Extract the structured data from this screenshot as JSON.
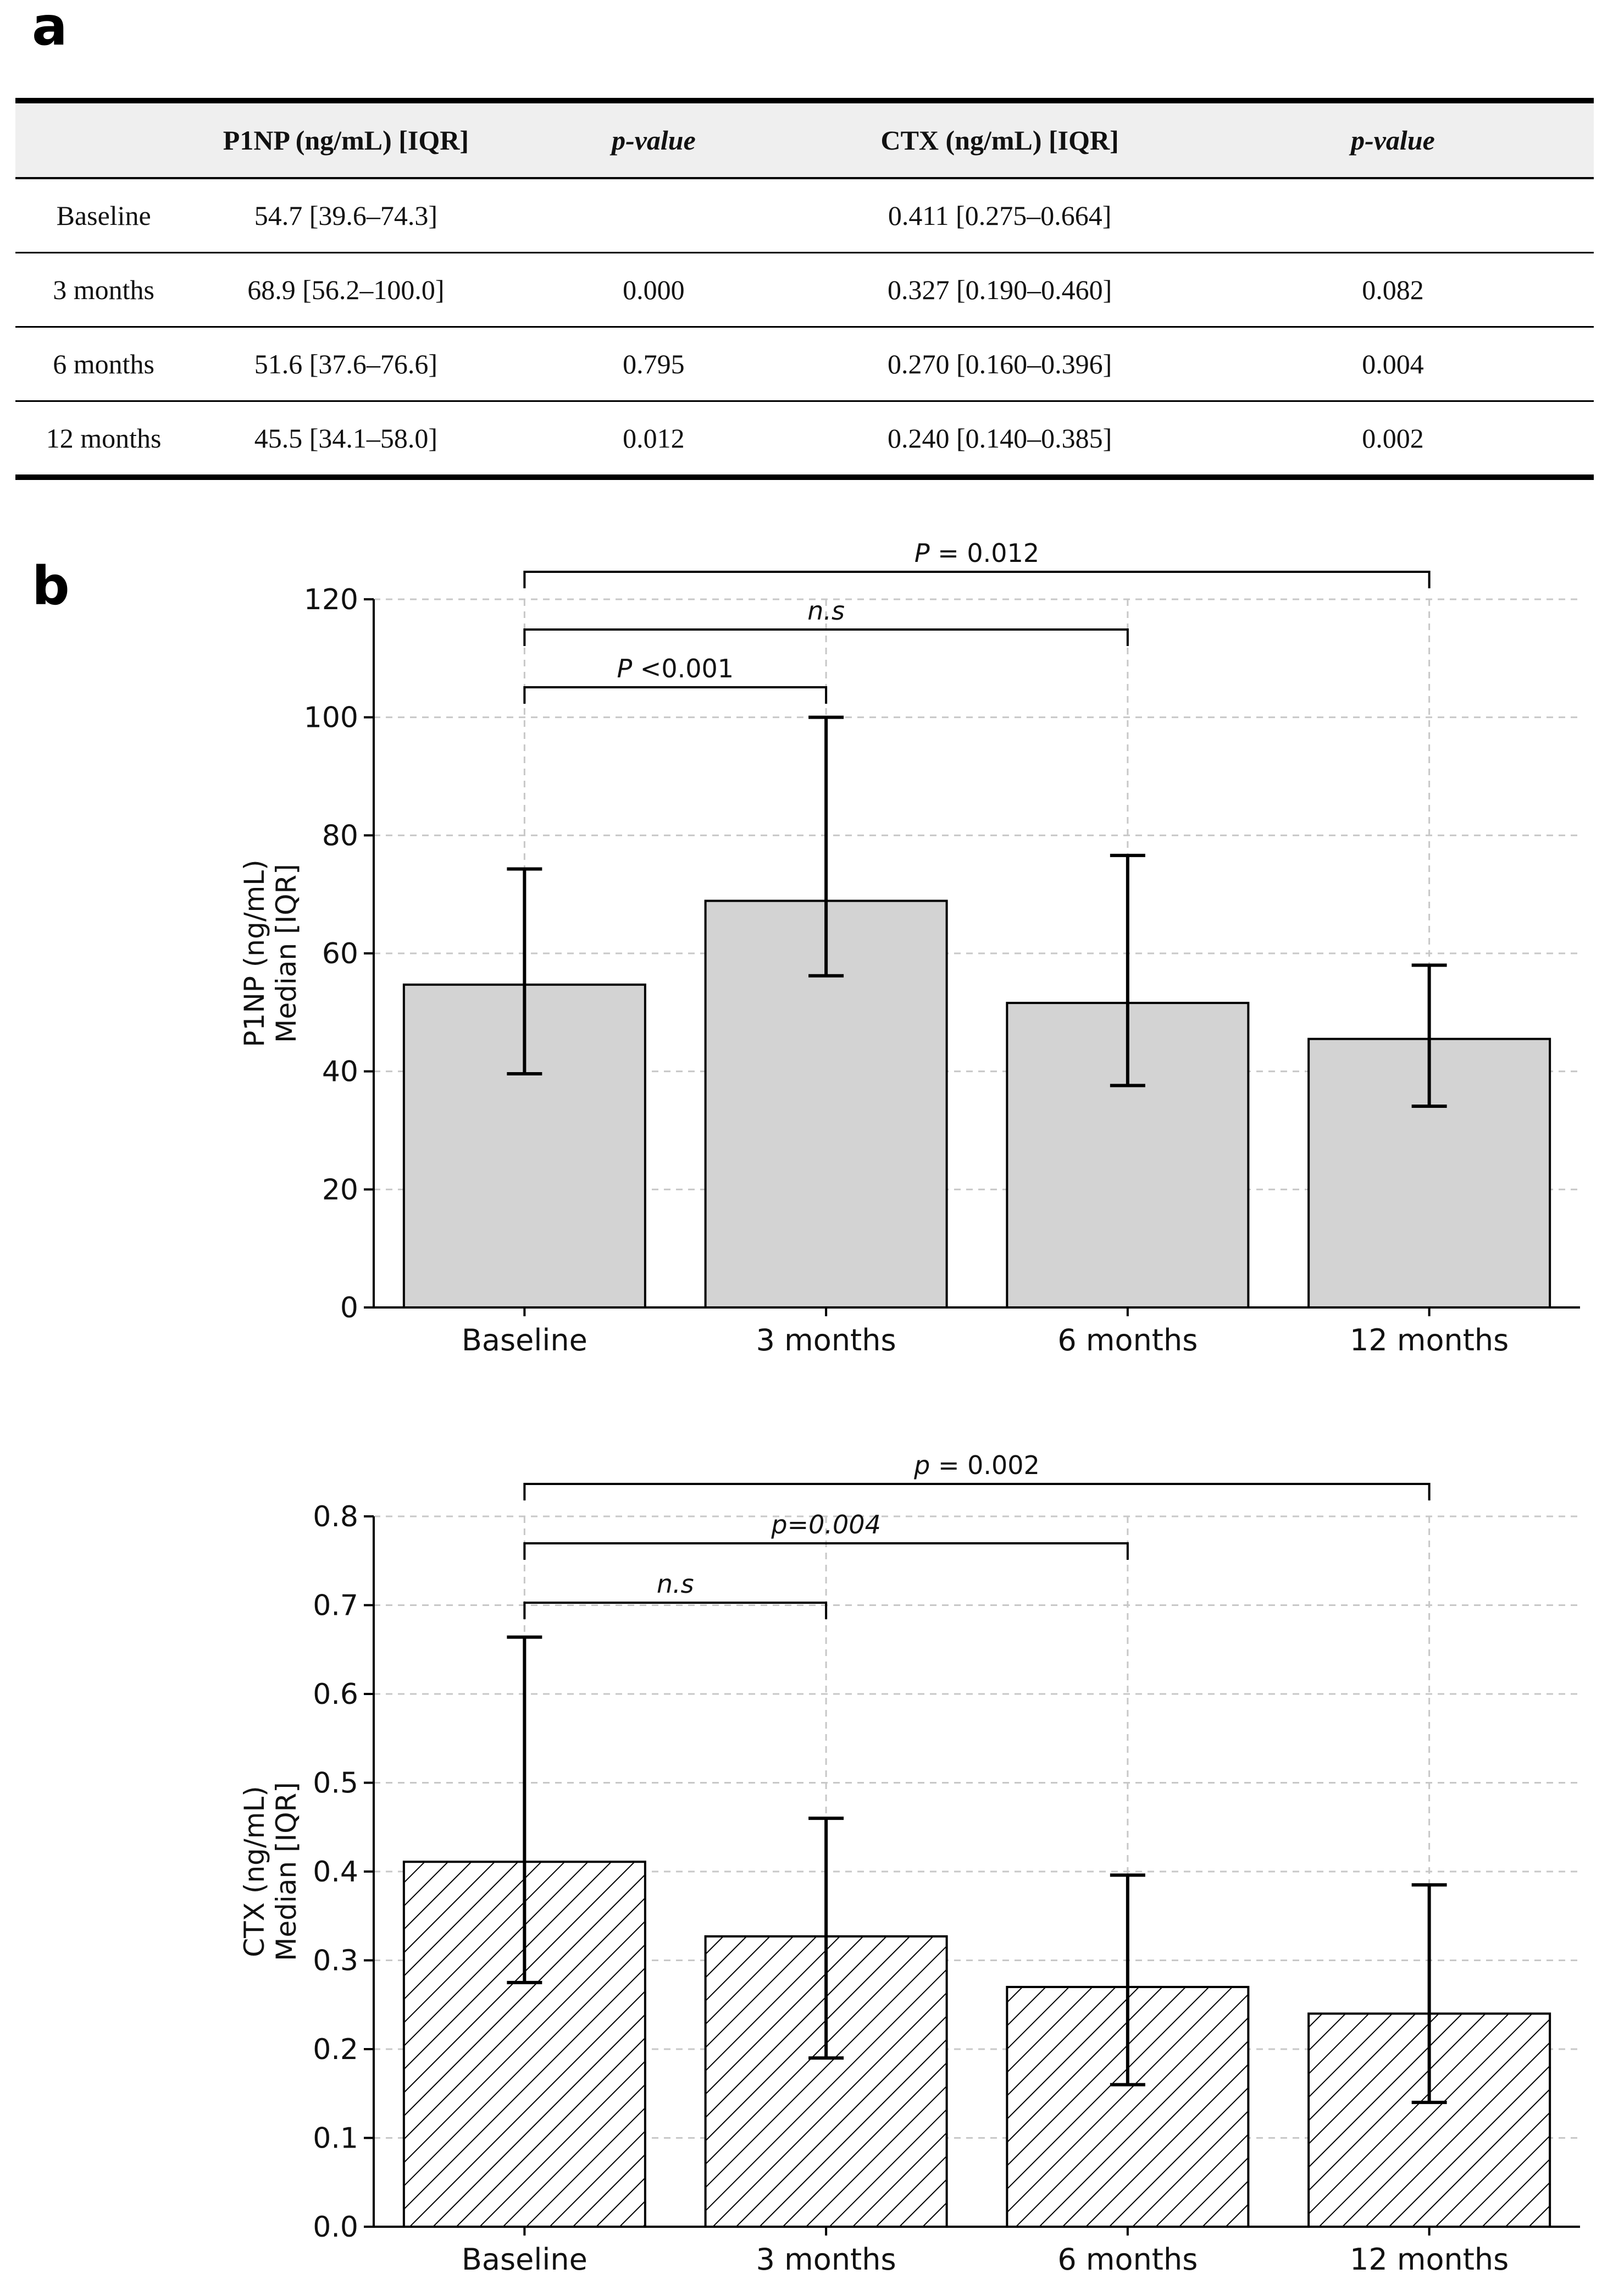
{
  "panel_labels": {
    "a": "a",
    "b": "b"
  },
  "table": {
    "headers": [
      "",
      "P1NP (ng/mL) [IQR]",
      "p-value",
      "CTX (ng/mL) [IQR]",
      "p-value"
    ],
    "rows": [
      [
        "Baseline",
        "54.7 [39.6–74.3]",
        "",
        "0.411 [0.275–0.664]",
        ""
      ],
      [
        "3 months",
        "68.9 [56.2–100.0]",
        "0.000",
        "0.327 [0.190–0.460]",
        "0.082"
      ],
      [
        "6 months",
        "51.6 [37.6–76.6]",
        "0.795",
        "0.270 [0.160–0.396]",
        "0.004"
      ],
      [
        "12 months",
        "45.5 [34.1–58.0]",
        "0.012",
        "0.240 [0.140–0.385]",
        "0.002"
      ]
    ]
  },
  "chart_data": [
    {
      "type": "bar",
      "categories": [
        "Baseline",
        "3 months",
        "6 months",
        "12 months"
      ],
      "values": [
        54.7,
        68.9,
        51.6,
        45.5
      ],
      "error_low": [
        39.6,
        56.2,
        37.6,
        34.1
      ],
      "error_high": [
        74.3,
        100.0,
        76.6,
        58.0
      ],
      "ylabel": [
        "P1NP (ng/mL)",
        "Median [IQR]"
      ],
      "ylim": [
        0,
        120
      ],
      "yticks": [
        "0",
        "20",
        "40",
        "60",
        "80",
        "100",
        "120"
      ],
      "bar_fill": "#d3d3d3",
      "hatched": false,
      "grid": true,
      "brackets": [
        {
          "from": 0,
          "to": 1,
          "prefix": "P",
          "text": " <0.001"
        },
        {
          "from": 0,
          "to": 2,
          "prefix": "n.s",
          "text": ""
        },
        {
          "from": 0,
          "to": 3,
          "prefix": "P",
          "text": " =  0.012"
        }
      ]
    },
    {
      "type": "bar",
      "categories": [
        "Baseline",
        "3 months",
        "6 months",
        "12 months"
      ],
      "values": [
        0.411,
        0.327,
        0.27,
        0.24
      ],
      "error_low": [
        0.275,
        0.19,
        0.16,
        0.14
      ],
      "error_high": [
        0.664,
        0.46,
        0.396,
        0.385
      ],
      "ylabel": [
        "CTX (ng/mL)",
        "Median [IQR]"
      ],
      "ylim": [
        0,
        0.8
      ],
      "yticks": [
        "0.0",
        "0.1",
        "0.2",
        "0.3",
        "0.4",
        "0.5",
        "0.6",
        "0.7",
        "0.8"
      ],
      "bar_fill": "#ffffff",
      "hatched": true,
      "grid": true,
      "brackets": [
        {
          "from": 0,
          "to": 1,
          "prefix": "n.s",
          "text": ""
        },
        {
          "from": 0,
          "to": 2,
          "prefix": "p=0.004",
          "text": ""
        },
        {
          "from": 0,
          "to": 3,
          "prefix": "p",
          "text": " =  0.002"
        }
      ]
    }
  ]
}
